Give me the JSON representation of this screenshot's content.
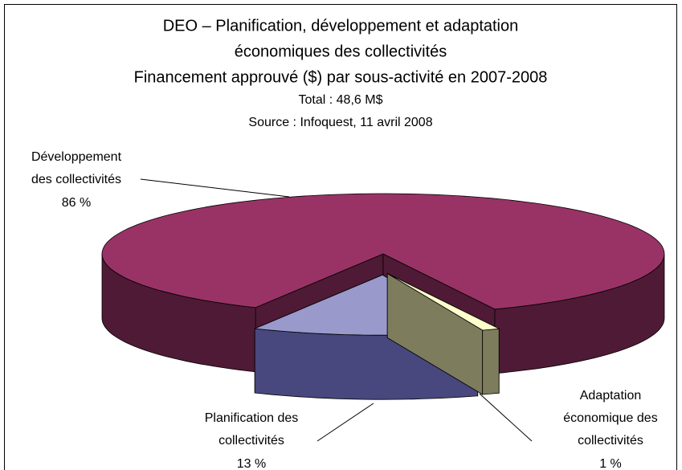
{
  "chart_data": {
    "type": "pie",
    "title": [
      "DEO – Planification, développement et adaptation",
      "économiques des collectivités",
      "Financement approuvé ($) par sous-activité en 2007-2008"
    ],
    "subtitle": [
      "Total : 48,6 M$",
      "Source : Infoquest, 11 avril 2008"
    ],
    "categories": [
      "Développement des collectivités",
      "Planification des collectivités",
      "Adaptation économique des collectivités"
    ],
    "values": [
      86,
      13,
      1
    ],
    "value_labels": [
      "86 %",
      "13 %",
      "1 %"
    ],
    "colors": [
      "#993366",
      "#9999cc",
      "#ffffcc"
    ],
    "side_colors": [
      "#4f1a35",
      "#48487e",
      "#7d7d5e"
    ]
  }
}
